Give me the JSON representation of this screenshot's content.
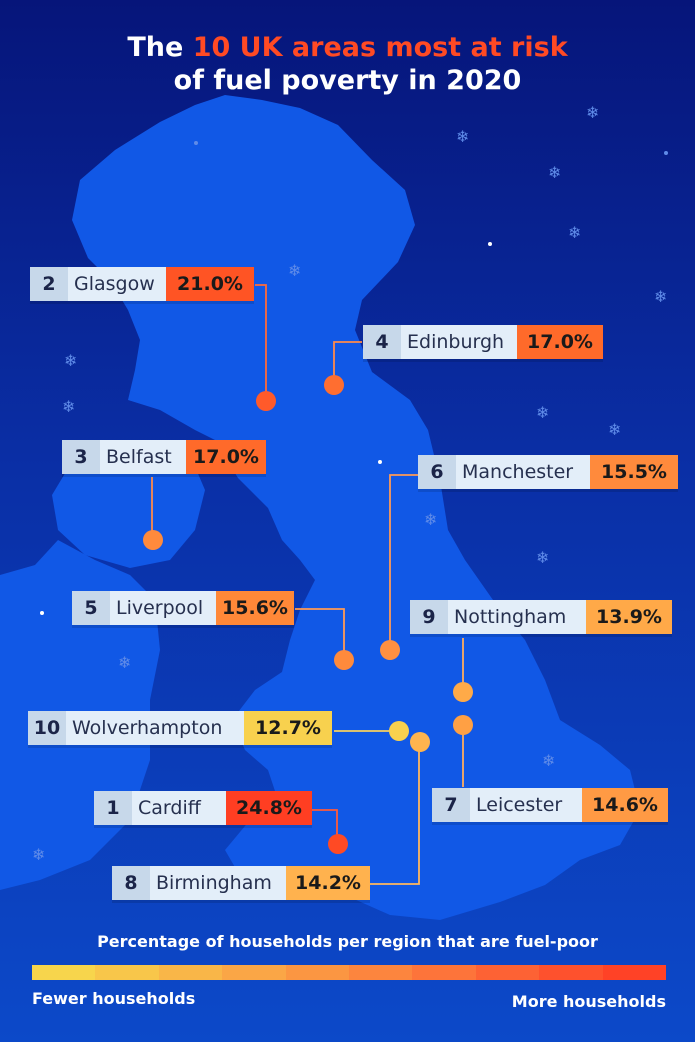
{
  "title": {
    "before": "The ",
    "highlight": "10 UK areas most at risk",
    "line2": "of fuel poverty in 2020"
  },
  "colors": {
    "background_top": "#06157a",
    "background_bottom": "#0c49c9",
    "land": "#1158e6",
    "highlight": "#ff4a24",
    "connector": "#f5a35a"
  },
  "regions": [
    {
      "rank": "2",
      "name": "Glasgow",
      "percent": "21.0%",
      "value": 21.0,
      "color": "#ff5424"
    },
    {
      "rank": "4",
      "name": "Edinburgh",
      "percent": "17.0%",
      "value": 17.0,
      "color": "#ff6a2a"
    },
    {
      "rank": "3",
      "name": "Belfast",
      "percent": "17.0%",
      "value": 17.0,
      "color": "#ff6a2a"
    },
    {
      "rank": "6",
      "name": "Manchester",
      "percent": "15.5%",
      "value": 15.5,
      "color": "#ff8a3c"
    },
    {
      "rank": "5",
      "name": "Liverpool",
      "percent": "15.6%",
      "value": 15.6,
      "color": "#ff8838"
    },
    {
      "rank": "9",
      "name": "Nottingham",
      "percent": "13.9%",
      "value": 13.9,
      "color": "#ffa948"
    },
    {
      "rank": "10",
      "name": "Wolverhampton",
      "percent": "12.7%",
      "value": 12.7,
      "color": "#f8d14e"
    },
    {
      "rank": "1",
      "name": "Cardiff",
      "percent": "24.8%",
      "value": 24.8,
      "color": "#ff3e22"
    },
    {
      "rank": "7",
      "name": "Leicester",
      "percent": "14.6%",
      "value": 14.6,
      "color": "#ff9a44"
    },
    {
      "rank": "8",
      "name": "Birmingham",
      "percent": "14.2%",
      "value": 14.2,
      "color": "#ffb24e"
    }
  ],
  "legend": {
    "title": "Percentage of households per region that are fuel-poor",
    "low_label": "Fewer households",
    "high_label": "More households",
    "colors": [
      "#f7d54c",
      "#f8c64a",
      "#f9b648",
      "#faa646",
      "#fb9642",
      "#fc853e",
      "#fd743a",
      "#fd6234",
      "#fe512d",
      "#ff4226"
    ]
  }
}
